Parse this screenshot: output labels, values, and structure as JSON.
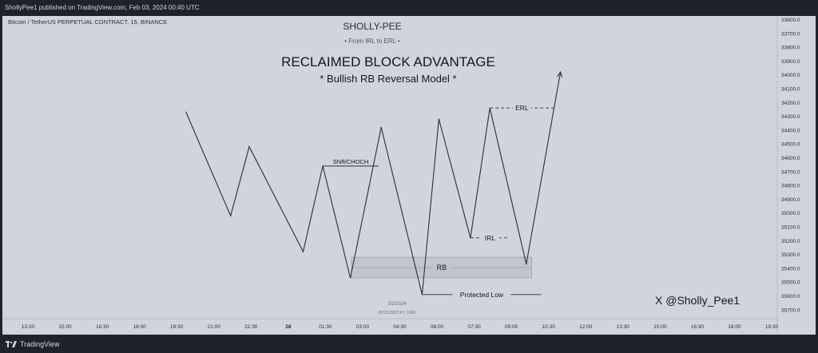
{
  "header": {
    "published": "ShollyPee1 published on TradingView.com, Feb 03, 2024 00:40 UTC"
  },
  "symbol": "Bitcoin / TetherUS PERPETUAL CONTRACT, 15, BINANCE",
  "titles": {
    "author": "SHOLLY-PEE",
    "tagline": "• From IRL to ERL •",
    "main": "RECLAIMED BLOCK ADVANTAGE",
    "sub": "* Bullish RB Reversal Model *"
  },
  "watermark": {
    "date": "3/2/2024",
    "ticker": "BTCUSDT.P | 15M"
  },
  "handle": "X @Sholly_Pee1",
  "footer": {
    "brand": "TradingView"
  },
  "colors": {
    "background": "#d1d4dc",
    "chrome": "#1e222d",
    "line": "#2a2e39",
    "zone": "#c2c5cc"
  },
  "chart_data": {
    "type": "line",
    "y_axis": {
      "ticks": [
        "33600.0",
        "33700.0",
        "33800.0",
        "33900.0",
        "34000.0",
        "34100.0",
        "34200.0",
        "34300.0",
        "34400.0",
        "34500.0",
        "34600.0",
        "34700.0",
        "34800.0",
        "34900.0",
        "35000.0",
        "35100.0",
        "35200.0",
        "35300.0",
        "35400.0",
        "35500.0",
        "35600.0",
        "35700.0"
      ],
      "inverted": true,
      "range": [
        33600,
        35700
      ]
    },
    "x_axis": {
      "ticks": [
        "13:30",
        "15:00",
        "16:30",
        "18:00",
        "19:30",
        "21:00",
        "22:30",
        "28",
        "01:30",
        "03:00",
        "04:30",
        "06:00",
        "07:30",
        "09:00",
        "10:30",
        "12:00",
        "13:30",
        "15:00",
        "16:30",
        "18:00",
        "19:30"
      ]
    },
    "path": [
      {
        "x": 4.25,
        "y": 34270
      },
      {
        "x": 5.45,
        "y": 35020
      },
      {
        "x": 5.95,
        "y": 34520
      },
      {
        "x": 7.4,
        "y": 35280
      },
      {
        "x": 7.93,
        "y": 34660
      },
      {
        "x": 8.67,
        "y": 35470
      },
      {
        "x": 9.5,
        "y": 34380
      },
      {
        "x": 10.6,
        "y": 35590
      },
      {
        "x": 11.05,
        "y": 34320
      },
      {
        "x": 11.9,
        "y": 35180
      },
      {
        "x": 12.42,
        "y": 34240
      },
      {
        "x": 13.4,
        "y": 35370
      },
      {
        "x": 14.32,
        "y": 33980
      }
    ],
    "zones": [
      {
        "label": "RB",
        "x0": 8.7,
        "x1": 13.55,
        "y0": 35320,
        "y1": 35470
      }
    ],
    "levels": [
      {
        "label": "Shift/CHOCH",
        "x0": 7.93,
        "x1": 9.43,
        "y": 34660,
        "style": "solid"
      },
      {
        "label": "ERL",
        "x0": 12.42,
        "x1": 14.15,
        "y": 34240,
        "style": "dashed"
      },
      {
        "label": "IRL",
        "x0": 11.9,
        "x1": 12.95,
        "y": 35180,
        "style": "dashed"
      },
      {
        "label": "Protected Low",
        "x0": 10.6,
        "x1": 13.8,
        "y": 35590,
        "style": "solid"
      }
    ],
    "arrow": {
      "x": 14.32,
      "y": 33980
    }
  }
}
